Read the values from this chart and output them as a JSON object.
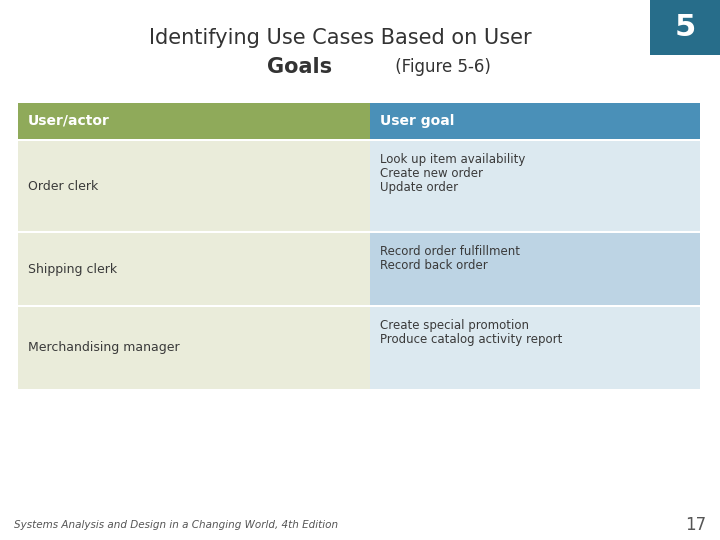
{
  "title_line1": "Identifying Use Cases Based on User",
  "title_line2_bold": "Goals",
  "title_line2_normal": " (Figure 5-6)",
  "slide_number": "5",
  "page_number": "17",
  "footer": "Systems Analysis and Design in a Changing World, 4th Edition",
  "col1_header": "User/actor",
  "col2_header": "User goal",
  "rows": [
    {
      "actor": "Order clerk",
      "goals": [
        "Look up item availability",
        "Create new order",
        "Update order"
      ]
    },
    {
      "actor": "Shipping clerk",
      "goals": [
        "Record order fulfillment",
        "Record back order"
      ]
    },
    {
      "actor": "Merchandising manager",
      "goals": [
        "Create special promotion",
        "Produce catalog activity report"
      ]
    }
  ],
  "header_actor_color": "#8faa5a",
  "header_goal_color": "#4a90b8",
  "row_actor_color": "#eaecda",
  "row_goal_colors": [
    "#dce9f0",
    "#bdd4e4",
    "#dce9f0"
  ],
  "header_text_color": "#ffffff",
  "body_text_color": "#3a3a3a",
  "bg_color": "#ffffff",
  "corner_box_color": "#276d8a",
  "title_color": "#333333",
  "footer_color": "#555555"
}
